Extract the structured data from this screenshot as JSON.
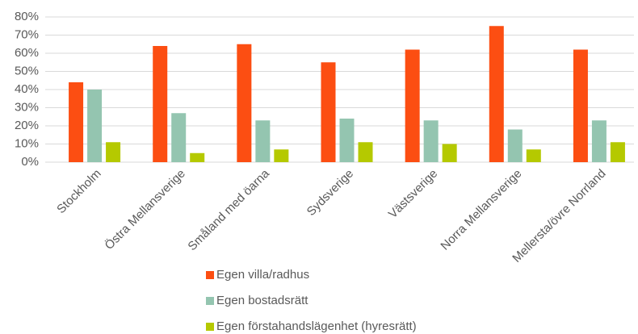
{
  "chart_data": {
    "type": "bar",
    "categories": [
      "Stockholm",
      "Östra Mellansverige",
      "Småland med öarna",
      "Sydsverige",
      "Västsverige",
      "Norra Mellansverige",
      "Mellersta/övre Norrland"
    ],
    "series": [
      {
        "name": "Egen villa/radhus",
        "color": "#fc4e12",
        "values": [
          44,
          64,
          65,
          55,
          62,
          75,
          62
        ]
      },
      {
        "name": "Egen bostadsrätt",
        "color": "#94c5b0",
        "values": [
          40,
          27,
          23,
          24,
          23,
          18,
          23
        ]
      },
      {
        "name": "Egen förstahandslägenhet (hyresrätt)",
        "color": "#b5c900",
        "values": [
          11,
          5,
          7,
          11,
          10,
          7,
          11
        ]
      }
    ],
    "ylim": [
      0,
      80
    ],
    "yticks": [
      {
        "value": 0,
        "label": "0%"
      },
      {
        "value": 10,
        "label": "10%"
      },
      {
        "value": 20,
        "label": "20%"
      },
      {
        "value": 30,
        "label": "30%"
      },
      {
        "value": 40,
        "label": "40%"
      },
      {
        "value": 50,
        "label": "50%"
      },
      {
        "value": 60,
        "label": "60%"
      },
      {
        "value": 70,
        "label": "70%"
      },
      {
        "value": 80,
        "label": "80%"
      }
    ],
    "grid": true
  }
}
